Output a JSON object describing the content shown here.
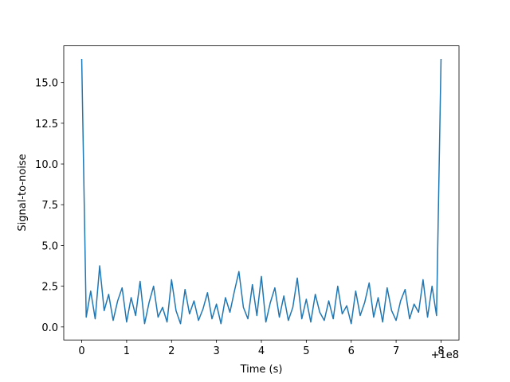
{
  "chart_data": {
    "type": "line",
    "xlabel": "Time (s)",
    "ylabel": "Signal-to-noise",
    "x_offset_label": "+1e8",
    "x": [
      0,
      0.1,
      0.2,
      0.3,
      0.4,
      0.5,
      0.6,
      0.7,
      0.8,
      0.9,
      1,
      1.1,
      1.2,
      1.3,
      1.4,
      1.5,
      1.6,
      1.7,
      1.8,
      1.9,
      2,
      2.1,
      2.2,
      2.3,
      2.4,
      2.5,
      2.6,
      2.7,
      2.8,
      2.9,
      3,
      3.1,
      3.2,
      3.3,
      3.4,
      3.5,
      3.6,
      3.7,
      3.8,
      3.9,
      4,
      4.1,
      4.2,
      4.3,
      4.4,
      4.5,
      4.6,
      4.7,
      4.8,
      4.9,
      5,
      5.1,
      5.2,
      5.3,
      5.4,
      5.5,
      5.6,
      5.7,
      5.8,
      5.9,
      6,
      6.1,
      6.2,
      6.3,
      6.4,
      6.5,
      6.6,
      6.7,
      6.8,
      6.9,
      7,
      7.1,
      7.2,
      7.3,
      7.4,
      7.5,
      7.6,
      7.7,
      7.8,
      7.9,
      8
    ],
    "series": [
      {
        "color": "#1f77b4",
        "values": [
          16.45,
          0.6,
          2.2,
          0.5,
          3.75,
          1.0,
          2.0,
          0.4,
          1.6,
          2.4,
          0.3,
          1.8,
          0.7,
          2.8,
          0.2,
          1.5,
          2.5,
          0.6,
          1.2,
          0.3,
          2.9,
          1.0,
          0.2,
          2.3,
          0.8,
          1.6,
          0.4,
          1.1,
          2.1,
          0.5,
          1.4,
          0.2,
          1.8,
          0.9,
          2.2,
          3.4,
          1.2,
          0.5,
          2.6,
          0.7,
          3.1,
          0.3,
          1.5,
          2.4,
          0.6,
          1.9,
          0.4,
          1.2,
          3.0,
          0.5,
          1.7,
          0.3,
          2.0,
          0.9,
          0.4,
          1.6,
          0.5,
          2.5,
          0.8,
          1.3,
          0.2,
          2.2,
          0.7,
          1.5,
          2.7,
          0.6,
          1.8,
          0.3,
          2.4,
          1.0,
          0.4,
          1.6,
          2.3,
          0.5,
          1.4,
          0.9,
          2.9,
          0.6,
          2.5,
          0.7,
          16.45
        ]
      }
    ],
    "xlim": [
      -0.4,
      8.4
    ],
    "xticks": [
      0,
      1,
      2,
      3,
      4,
      5,
      6,
      7,
      8
    ],
    "ylim": [
      -0.8,
      17.25
    ],
    "yticks": [
      {
        "value": 0,
        "label": "0.0"
      },
      2.5,
      {
        "value": 5,
        "label": "5.0"
      },
      7.5,
      {
        "value": 10,
        "label": "10.0"
      },
      12.5,
      {
        "value": 15,
        "label": "15.0"
      }
    ]
  }
}
